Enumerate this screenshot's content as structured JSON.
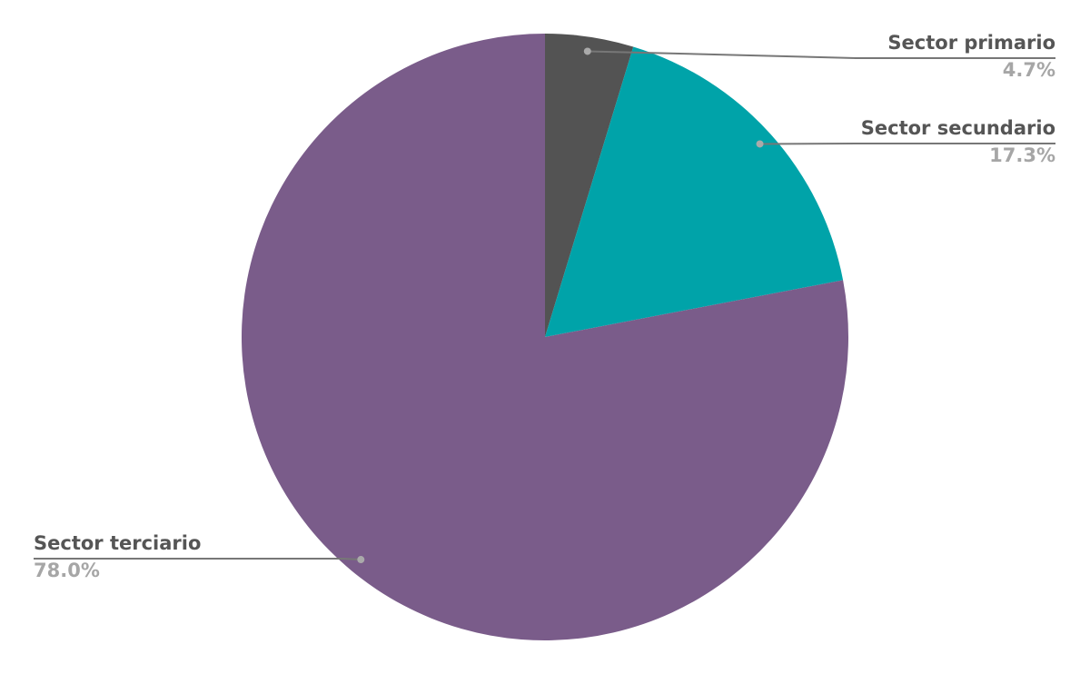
{
  "chart_data": {
    "type": "pie",
    "categories": [
      "Sector primario",
      "Sector secundario",
      "Sector terciario"
    ],
    "values": [
      4.7,
      17.3,
      78.0
    ],
    "value_labels": [
      "4.7%",
      "17.3%",
      "78.0%"
    ],
    "colors": [
      "#535353",
      "#00a3a9",
      "#7a5c8a"
    ]
  }
}
